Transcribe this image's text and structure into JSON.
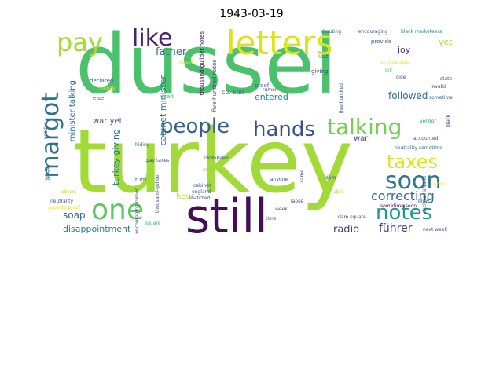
{
  "title": "1943-03-19",
  "words": [
    {
      "text": "dussel",
      "color": "#4cc16d"
    },
    {
      "text": "turkey",
      "color": "#a2da37"
    },
    {
      "text": "still",
      "color": "#440f54"
    },
    {
      "text": "letters",
      "color": "#dde318"
    },
    {
      "text": "one",
      "color": "#5ec962"
    },
    {
      "text": "hands",
      "color": "#3b518b"
    },
    {
      "text": "people",
      "color": "#355f8d"
    },
    {
      "text": "talking",
      "color": "#74d055"
    },
    {
      "text": "soon",
      "color": "#2a788e"
    },
    {
      "text": "notes",
      "color": "#1f978b"
    },
    {
      "text": "taxes",
      "color": "#dde318"
    },
    {
      "text": "margot",
      "color": "#2c728e"
    },
    {
      "text": "pay",
      "color": "#a8db34"
    },
    {
      "text": "like",
      "color": "#482173"
    },
    {
      "text": "correcting",
      "color": "#2f6c8e"
    },
    {
      "text": "radio",
      "color": "#443a83"
    },
    {
      "text": "führer",
      "color": "#3e4989"
    },
    {
      "text": "father",
      "color": "#2c728e"
    },
    {
      "text": "soap",
      "color": "#31668e"
    },
    {
      "text": "followed",
      "color": "#2f6b8e"
    },
    {
      "text": "entered",
      "color": "#25848e"
    },
    {
      "text": "disappointment",
      "color": "#287d8e"
    },
    {
      "text": "joy",
      "color": "#443a83"
    },
    {
      "text": "yet",
      "color": "#a8db34"
    },
    {
      "text": "war",
      "color": "#3d4e8a"
    },
    {
      "text": "war yet",
      "color": "#3b528b"
    },
    {
      "text": "hour",
      "color": "#b8de29"
    },
    {
      "text": "turkey giving",
      "color": "#2a788e"
    },
    {
      "text": "cabinet minister",
      "color": "#2a778e"
    },
    {
      "text": "minister talking",
      "color": "#2e6f8e"
    },
    {
      "text": "less",
      "color": "#2d718e"
    },
    {
      "text": "turn",
      "color": "#3b528b"
    },
    {
      "text": "five-hundred notes",
      "color": "#3e4a89"
    },
    {
      "text": "thousand-guilder notes",
      "color": "#440154"
    },
    {
      "text": "co. still",
      "color": "#33638d"
    },
    {
      "text": "used",
      "color": "#58c765"
    },
    {
      "text": "money",
      "color": "#e5e419"
    },
    {
      "text": "declared",
      "color": "#33628d"
    },
    {
      "text": "else",
      "color": "#2c728e"
    },
    {
      "text": "proof",
      "color": "#37588c"
    },
    {
      "text": "rumor",
      "color": "#3f4788"
    },
    {
      "text": "giving",
      "color": "#404588"
    },
    {
      "text": "next",
      "color": "#38598c"
    },
    {
      "text": "provide",
      "color": "#3a548c"
    },
    {
      "text": "shouting",
      "color": "#32648e"
    },
    {
      "text": "encouraging",
      "color": "#3e4c8a"
    },
    {
      "text": "black marketeers",
      "color": "#26818e"
    },
    {
      "text": "anyone else",
      "color": "#e2e418"
    },
    {
      "text": "bill",
      "color": "#4ac16d"
    },
    {
      "text": "cide",
      "color": "#3a548c"
    },
    {
      "text": "invalid",
      "color": "#3f4889"
    },
    {
      "text": "state",
      "color": "#3d4e8a"
    },
    {
      "text": "sometime",
      "color": "#2e6d8e"
    },
    {
      "text": "black",
      "color": "#414287"
    },
    {
      "text": "vendor",
      "color": "#20928c"
    },
    {
      "text": "accounted",
      "color": "#39568c"
    },
    {
      "text": "neutrality sometime",
      "color": "#31678e"
    },
    {
      "text": "declared invalid",
      "color": "#3e4989"
    },
    {
      "text": "blow",
      "color": "#3a548c"
    },
    {
      "text": "next week",
      "color": "#3a538b"
    },
    {
      "text": "dam square",
      "color": "#404588"
    },
    {
      "text": "able",
      "color": "#b0dd2f"
    },
    {
      "text": "lapse",
      "color": "#3e4c8a"
    },
    {
      "text": "time",
      "color": "#33638d"
    },
    {
      "text": "week",
      "color": "#39558c"
    },
    {
      "text": "dam",
      "color": "#3d4d8a"
    },
    {
      "text": "came",
      "color": "#3b518b"
    },
    {
      "text": "anyone",
      "color": "#3f4889"
    },
    {
      "text": "cabinet",
      "color": "#3a548c"
    },
    {
      "text": "england",
      "color": "#3e4c8a"
    },
    {
      "text": "snatched",
      "color": "#3d4e8a"
    },
    {
      "text": "minister",
      "color": "#8bd646"
    },
    {
      "text": "newspaper",
      "color": "#355e8d"
    },
    {
      "text": "pay taxes",
      "color": "#3b518b"
    },
    {
      "text": "thousand-guilder",
      "color": "#3e4a89"
    },
    {
      "text": "encouraging rumor",
      "color": "#3d4e8a"
    },
    {
      "text": "hiding",
      "color": "#2d708e"
    },
    {
      "text": "square",
      "color": "#35b779"
    },
    {
      "text": "neutrality",
      "color": "#3a538b"
    },
    {
      "text": "provide proof",
      "color": "#e7e419"
    },
    {
      "text": "others",
      "color": "#b5de2b"
    },
    {
      "text": "vendor",
      "color": "#3b528b"
    },
    {
      "text": "heard",
      "color": "#e5e419"
    },
    {
      "text": "sometime soon",
      "color": "#440154"
    },
    {
      "text": "papers",
      "color": "#fde725"
    },
    {
      "text": "five-hundred",
      "color": "#3a548c"
    }
  ]
}
